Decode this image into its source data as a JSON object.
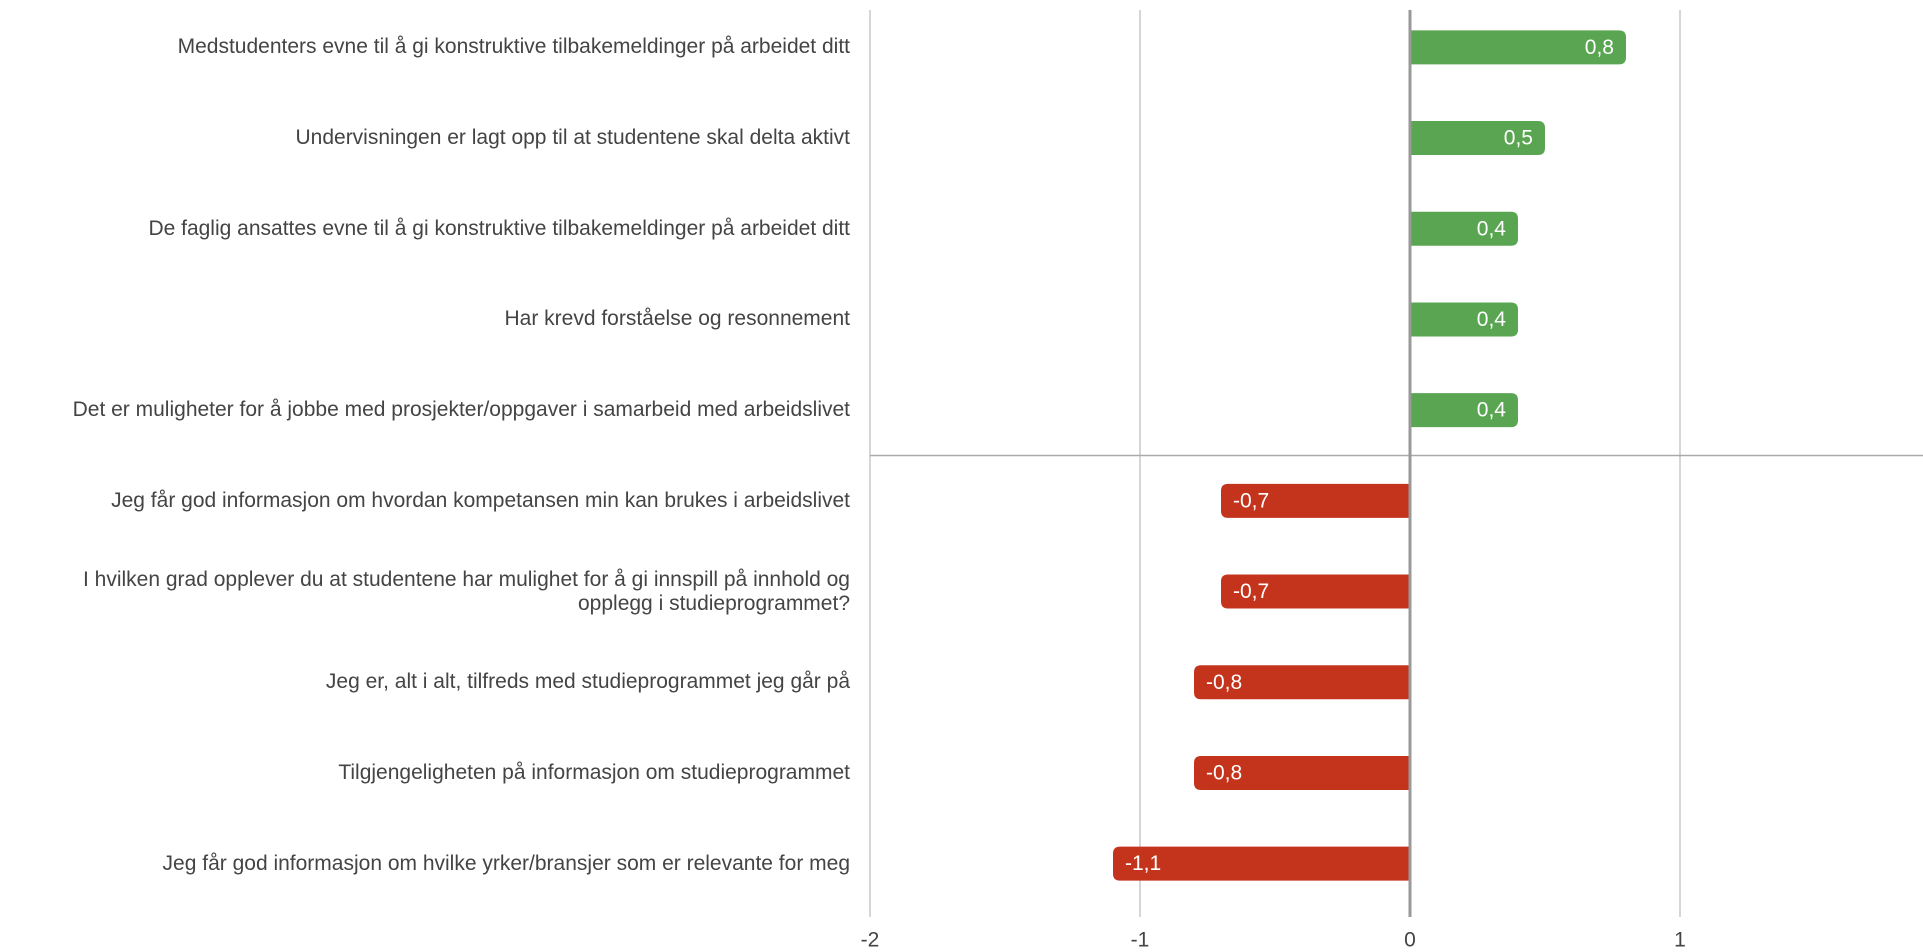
{
  "chart_data": {
    "type": "bar",
    "orientation": "horizontal",
    "categories": [
      "Medstudenters evne til å gi konstruktive tilbakemeldinger på arbeidet ditt",
      "Undervisningen er lagt opp til at studentene skal delta aktivt",
      "De faglig ansattes evne til å gi konstruktive tilbakemeldinger på arbeidet ditt",
      "Har krevd forståelse og resonnement",
      "Det er muligheter for å jobbe med prosjekter/oppgaver i samarbeid med arbeidslivet",
      "Jeg får god informasjon om hvordan kompetansen min kan brukes i arbeidslivet",
      "I hvilken grad opplever du at studentene har mulighet for å gi innspill på innhold og opplegg i studieprogrammet?",
      "Jeg er, alt i alt, tilfreds med studieprogrammet jeg går på",
      "Tilgjengeligheten på informasjon om studieprogrammet",
      "Jeg får god informasjon om hvilke yrker/bransjer som er relevante for meg"
    ],
    "values": [
      0.8,
      0.5,
      0.4,
      0.4,
      0.4,
      -0.7,
      -0.7,
      -0.8,
      -0.8,
      -1.1
    ],
    "value_labels": [
      "0,8",
      "0,5",
      "0,4",
      "0,4",
      "0,4",
      "-0,7",
      "-0,7",
      "-0,8",
      "-0,8",
      "-1,1"
    ],
    "positive_color": "#5aa552",
    "negative_color": "#c4341c",
    "xlim": [
      -2,
      1.9
    ],
    "xticks": [
      -2,
      -1,
      0,
      1
    ],
    "grid": true
  }
}
